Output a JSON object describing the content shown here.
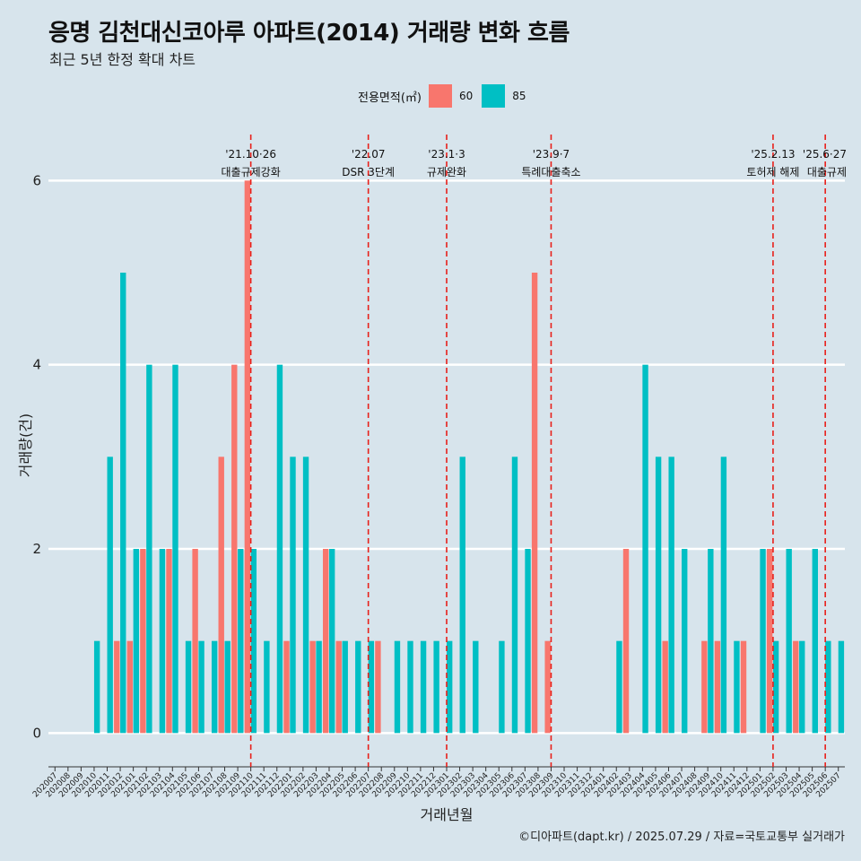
{
  "header": {
    "title": "응명 김천대신코아루 아파트(2014) 거래량 변화 흐름",
    "subtitle": "최근 5년 한정 확대 차트"
  },
  "legend": {
    "title": "전용면적(㎡)",
    "items": [
      {
        "label": "60",
        "color": "#f8766d"
      },
      {
        "label": "85",
        "color": "#00bfc4"
      }
    ]
  },
  "caption": "©디아파트(dapt.kr) / 2025.07.29 / 자료=국토교통부 실거래가",
  "chart_data": {
    "type": "bar",
    "stacking": "dodge",
    "title": "응명 김천대신코아루 아파트(2014) 거래량 변화 흐름",
    "subtitle": "최근 5년 한정 확대 차트",
    "xlabel": "거래년월",
    "ylabel": "거래량(건)",
    "ylim": [
      -0.25,
      6.5
    ],
    "yticks": [
      0,
      2,
      4,
      6
    ],
    "grid": "horizontal",
    "legend_position": "top",
    "colors": {
      "60": "#f8766d",
      "85": "#00bfc4"
    },
    "categories": [
      "202007",
      "202008",
      "202009",
      "202010",
      "202011",
      "202012",
      "202101",
      "202102",
      "202103",
      "202104",
      "202105",
      "202106",
      "202107",
      "202108",
      "202109",
      "202110",
      "202111",
      "202112",
      "202201",
      "202202",
      "202203",
      "202204",
      "202205",
      "202206",
      "202207",
      "202208",
      "202209",
      "202210",
      "202211",
      "202212",
      "202301",
      "202302",
      "202303",
      "202304",
      "202305",
      "202306",
      "202307",
      "202308",
      "202309",
      "202310",
      "202311",
      "202312",
      "202401",
      "202402",
      "202403",
      "202404",
      "202405",
      "202406",
      "202407",
      "202408",
      "202409",
      "202410",
      "202411",
      "202412",
      "202501",
      "202502",
      "202503",
      "202504",
      "202505",
      "202506",
      "202507"
    ],
    "series": [
      {
        "name": "60",
        "values": [
          0,
          0,
          0,
          0,
          0,
          1,
          1,
          2,
          0,
          2,
          0,
          2,
          0,
          3,
          4,
          6,
          0,
          0,
          1,
          0,
          1,
          2,
          1,
          0,
          0,
          1,
          0,
          0,
          0,
          0,
          0,
          0,
          0,
          0,
          0,
          0,
          0,
          5,
          1,
          0,
          0,
          0,
          0,
          0,
          2,
          0,
          0,
          1,
          0,
          0,
          1,
          1,
          0,
          1,
          0,
          2,
          0,
          1,
          0,
          0,
          0
        ]
      },
      {
        "name": "85",
        "values": [
          0,
          0,
          0,
          1,
          3,
          5,
          2,
          4,
          2,
          4,
          1,
          1,
          1,
          1,
          2,
          2,
          1,
          4,
          3,
          3,
          1,
          2,
          1,
          1,
          1,
          0,
          1,
          1,
          1,
          1,
          1,
          3,
          1,
          0,
          1,
          3,
          2,
          0,
          0,
          0,
          0,
          0,
          0,
          1,
          0,
          4,
          3,
          3,
          2,
          0,
          2,
          3,
          1,
          0,
          2,
          1,
          2,
          1,
          2,
          1,
          1
        ]
      }
    ],
    "events": [
      {
        "month": "202110",
        "date": "'21.10·26",
        "label": "대출규제강화"
      },
      {
        "month": "202207",
        "date": "'22.07",
        "label": "DSR 3단계"
      },
      {
        "month": "202301",
        "date": "'23.1·3",
        "label": "규제완화"
      },
      {
        "month": "202309",
        "date": "'23.9·7",
        "label": "특례대출축소"
      },
      {
        "month": "202502",
        "date": "'25.2.13",
        "label": "토허제 해제"
      },
      {
        "month": "202506",
        "date": "'25.6·27",
        "label": "대출규제"
      }
    ]
  }
}
